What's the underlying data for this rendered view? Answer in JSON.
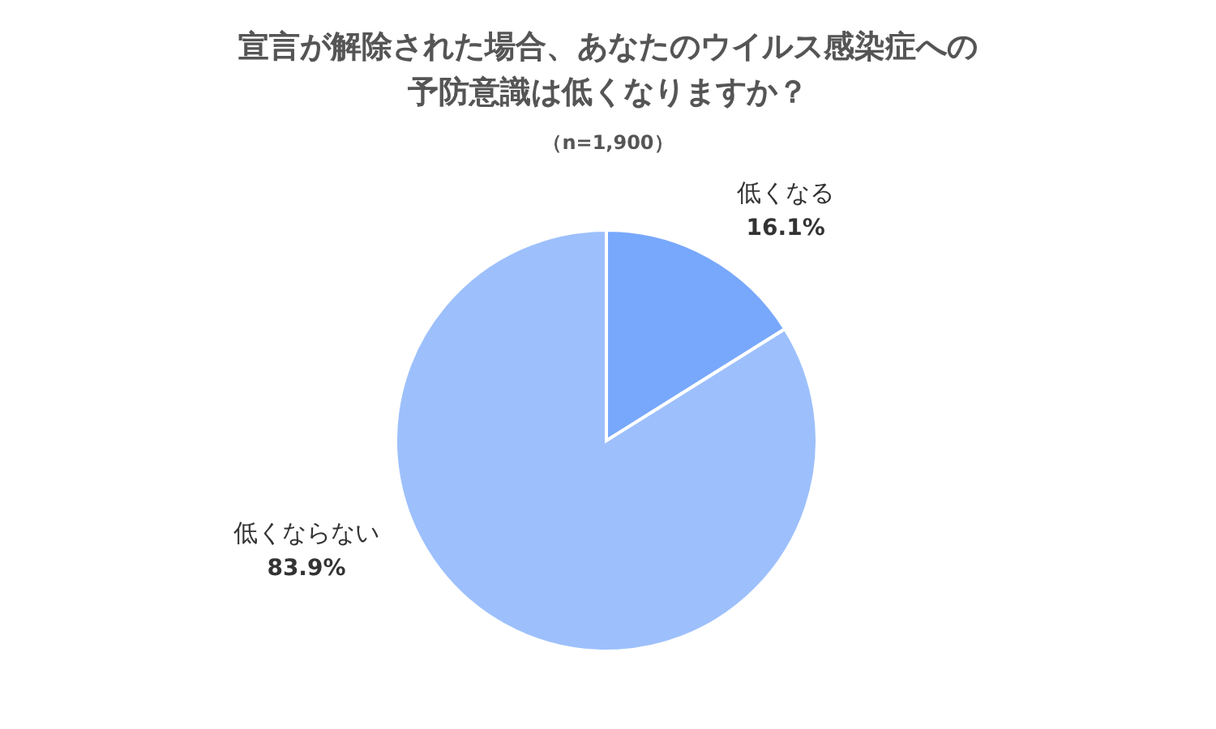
{
  "chart_data": {
    "type": "pie",
    "title": "宣言が解除された場合、あなたのウイルス感染症への予防意識は低くなりますか？",
    "subtitle": "（n=1,900）",
    "categories": [
      "低くなる",
      "低くならない"
    ],
    "values": [
      16.1,
      83.9
    ],
    "value_labels": [
      "16.1%",
      "83.9%"
    ],
    "colors": [
      "#78a8fc",
      "#9dc0fc"
    ],
    "legend": false
  }
}
